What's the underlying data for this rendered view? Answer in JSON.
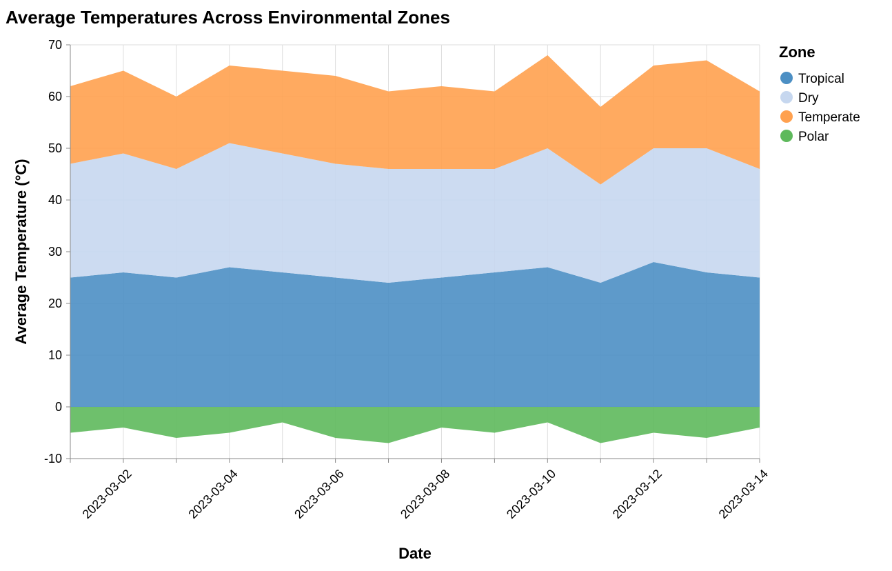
{
  "chart_data": {
    "type": "area",
    "stacked": true,
    "title": "Average Temperatures Across Environmental Zones",
    "xlabel": "Date",
    "ylabel": "Average Temperature (°C)",
    "ylim": [
      -10,
      70
    ],
    "yticks": [
      -10,
      0,
      10,
      20,
      30,
      40,
      50,
      60,
      70
    ],
    "xlim": [
      "2023-03-01",
      "2023-03-14"
    ],
    "xticks": [
      "2023-03-02",
      "2023-03-04",
      "2023-03-06",
      "2023-03-08",
      "2023-03-10",
      "2023-03-12",
      "2023-03-14"
    ],
    "grid": true,
    "legend": {
      "title": "Zone",
      "position": "right"
    },
    "x": [
      "2023-03-01",
      "2023-03-02",
      "2023-03-03",
      "2023-03-04",
      "2023-03-05",
      "2023-03-06",
      "2023-03-07",
      "2023-03-08",
      "2023-03-09",
      "2023-03-10",
      "2023-03-11",
      "2023-03-12",
      "2023-03-13",
      "2023-03-14"
    ],
    "series": [
      {
        "name": "Tropical",
        "color": "#4c8fc4",
        "values": [
          25,
          26,
          25,
          27,
          26,
          25,
          24,
          25,
          26,
          27,
          24,
          28,
          26,
          25
        ]
      },
      {
        "name": "Dry",
        "color": "#c6d7ef",
        "values": [
          22,
          23,
          21,
          24,
          23,
          22,
          22,
          21,
          20,
          23,
          19,
          22,
          24,
          21
        ]
      },
      {
        "name": "Temperate",
        "color": "#ffa14f",
        "values": [
          15,
          16,
          14,
          15,
          16,
          17,
          15,
          16,
          15,
          18,
          15,
          16,
          17,
          15
        ]
      },
      {
        "name": "Polar",
        "color": "#5eb95c",
        "values": [
          -5,
          -4,
          -6,
          -5,
          -3,
          -6,
          -7,
          -4,
          -5,
          -3,
          -7,
          -5,
          -6,
          -4
        ]
      }
    ]
  }
}
